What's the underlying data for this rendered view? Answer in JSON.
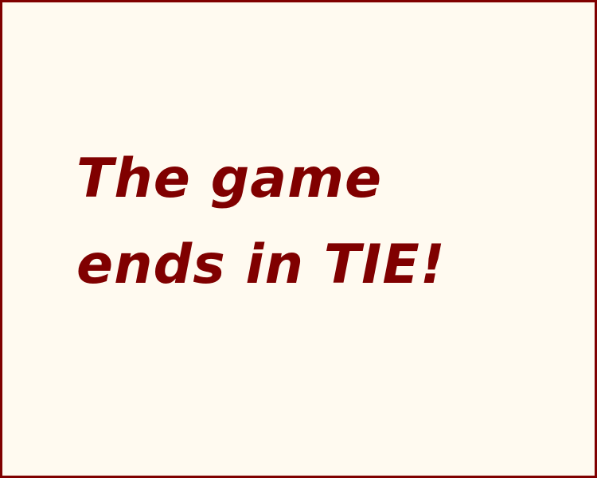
{
  "game_over": {
    "message_lines": [
      "The game",
      "ends in TIE!"
    ]
  },
  "colors": {
    "background": "#fffaf0",
    "border": "#800000",
    "text": "#800000"
  }
}
